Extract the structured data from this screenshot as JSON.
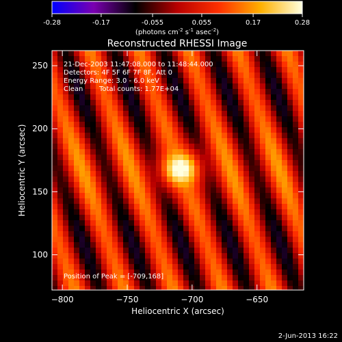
{
  "colorbar": {
    "ticks": [
      "-0.28",
      "-0.17",
      "-0.055",
      "0.055",
      "0.17",
      "0.28"
    ],
    "tick_values": [
      -0.28,
      -0.17,
      -0.055,
      0.055,
      0.17,
      0.28
    ],
    "range": [
      -0.28,
      0.28
    ],
    "units_main": "(photons cm",
    "units_exp1": "-2",
    "units_mid": " s",
    "units_exp2": "-1",
    "units_mid2": " asec",
    "units_exp3": "-2",
    "units_end": ")",
    "stops": [
      "#0000ff",
      "#7a00b0",
      "#000000",
      "#b80000",
      "#ff3000",
      "#ffb000",
      "#ffffe0"
    ]
  },
  "chart_data": {
    "type": "heatmap",
    "title": "Reconstructed RHESSI Image",
    "xlabel": "Heliocentric X (arcsec)",
    "ylabel": "Heliocentric Y (arcsec)",
    "xlim": [
      -808,
      -614
    ],
    "ylim": [
      72,
      262
    ],
    "x_ticks": [
      -800,
      -750,
      -700,
      -650
    ],
    "y_ticks": [
      100,
      150,
      200,
      250
    ],
    "peak": {
      "x": -709,
      "y": 168,
      "value": 0.28
    },
    "stripe_orientation": "diagonal, tilted to upper-right",
    "annotations": {
      "time_range": "21-Dec-2003 11:47:08.000 to 11:48:44.000",
      "detectors": "Detectors: 4F 5F 6F 7F 8F, Att 0",
      "energy": "Energy Range: 3.0 - 6.0 keV",
      "method": "Clean",
      "counts": "Total counts: 1.77E+04",
      "peak_label": "Position of Peak = [-709,168]"
    }
  },
  "footer": {
    "date": "2-Jun-2013 16:22"
  }
}
